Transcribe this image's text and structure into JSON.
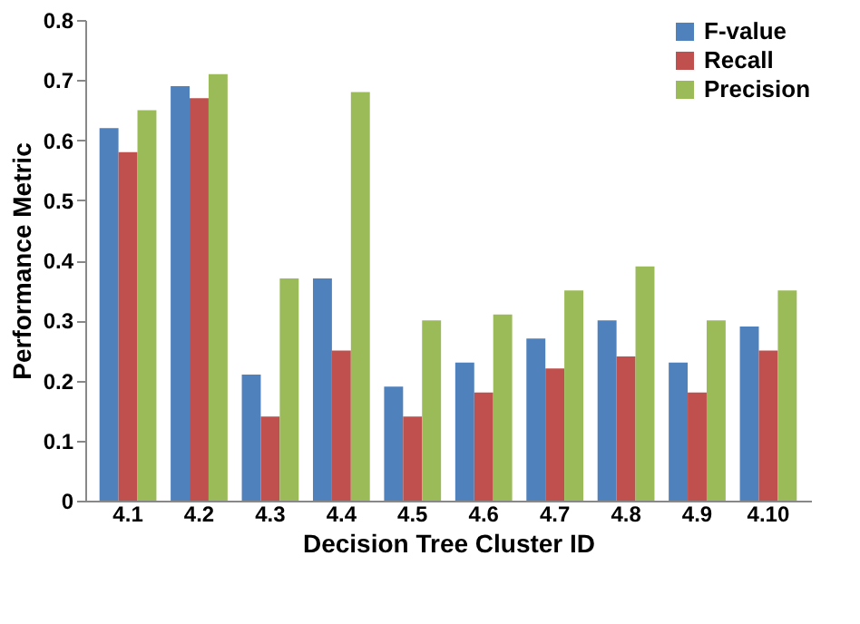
{
  "chart_data": {
    "type": "bar",
    "xlabel": "Decision Tree Cluster ID",
    "ylabel": "Performance Metric",
    "categories": [
      "4.1",
      "4.2",
      "4.3",
      "4.4",
      "4.5",
      "4.6",
      "4.7",
      "4.8",
      "4.9",
      "4.10"
    ],
    "series": [
      {
        "name": "F-value",
        "color": "#4f81bd",
        "values": [
          0.62,
          0.69,
          0.21,
          0.37,
          0.19,
          0.23,
          0.27,
          0.3,
          0.23,
          0.29
        ]
      },
      {
        "name": "Recall",
        "color": "#c0504d",
        "values": [
          0.58,
          0.67,
          0.14,
          0.25,
          0.14,
          0.18,
          0.22,
          0.24,
          0.18,
          0.25
        ]
      },
      {
        "name": "Precision",
        "color": "#9bbb59",
        "values": [
          0.65,
          0.71,
          0.37,
          0.68,
          0.3,
          0.31,
          0.35,
          0.39,
          0.3,
          0.35
        ]
      }
    ],
    "ylim": [
      0,
      0.8
    ],
    "yticks": [
      {
        "value": 0,
        "label": "0"
      },
      0.1,
      0.2,
      0.3,
      0.4,
      0.5,
      0.6,
      0.7,
      0.8
    ],
    "grid": false,
    "legend": "top right"
  }
}
